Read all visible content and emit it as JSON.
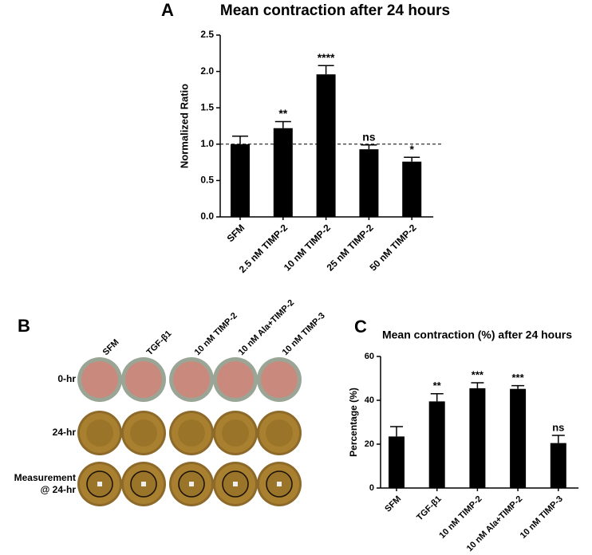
{
  "chart_data": [
    {
      "type": "bar",
      "panel": "A",
      "title": "Mean contraction after 24 hours",
      "y_label": "Normalized Ratio",
      "categories": [
        "SFM",
        "2.5 nM TIMP-2",
        "10 nM TIMP-2",
        "25 nM TIMP-2",
        "50 nM TIMP-2"
      ],
      "values": [
        1.0,
        1.22,
        1.96,
        0.93,
        0.76
      ],
      "errors": [
        0.11,
        0.09,
        0.12,
        0.06,
        0.06
      ],
      "annotations": [
        null,
        "**",
        "****",
        "ns",
        "*"
      ],
      "reference_line": 1.0,
      "ylim": [
        0,
        2.5
      ],
      "yticks": [
        {
          "value": 0,
          "label": "0.0"
        },
        0.5,
        {
          "value": 1,
          "label": "1.0"
        },
        1.5,
        {
          "value": 2,
          "label": "2.0"
        },
        2.5
      ],
      "color": "#000000"
    },
    {
      "type": "bar",
      "panel": "C",
      "title": "Mean contraction (%) after 24 hours",
      "y_label": "Percentage (%)",
      "categories": [
        "SFM",
        "TGF-β1",
        "10 nM TIMP-2",
        "10 nM Ala+TIMP-2",
        "10 nM TIMP-3"
      ],
      "values": [
        23.5,
        39.5,
        45.5,
        45.2,
        20.5
      ],
      "errors": [
        4.5,
        3.5,
        2.5,
        1.5,
        3.5
      ],
      "annotations": [
        null,
        "**",
        "***",
        "***",
        "ns"
      ],
      "ylim": [
        0,
        60
      ],
      "yticks": [
        0,
        20,
        40,
        60
      ],
      "color": "#000000"
    }
  ],
  "panel_b": {
    "label": "B",
    "columns": [
      "SFM",
      "TGF-β1",
      "10 nM TIMP-2",
      "10 nM Ala+TIMP-2",
      "10 nM TIMP-3"
    ],
    "rows": [
      "0-hr",
      "24-hr",
      [
        "Measurement",
        "@ 24-hr"
      ]
    ]
  }
}
